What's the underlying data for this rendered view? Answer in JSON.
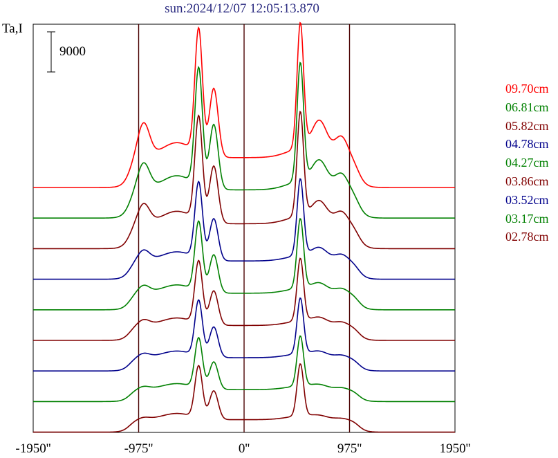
{
  "header": {
    "title": "sun:2024/12/07 12:05:13.870"
  },
  "chart_data": {
    "type": "line",
    "title": "sun:2024/12/07 12:05:13.870",
    "ylabel": "Ta,I",
    "scale_bar_label": "9000",
    "xlim": [
      -1950,
      1950
    ],
    "x_ticks": [
      -1950,
      -975,
      0,
      975,
      1950
    ],
    "x_tick_labels": [
      "-1950''",
      "-975''",
      "0''",
      "975''",
      "1950''"
    ],
    "vertical_lines": [
      -975,
      0,
      975
    ],
    "y_units": "offset stacked (scale bar = 9000)",
    "series": [
      {
        "name": "09.70cm",
        "color": "#ff0000",
        "baseline": 0,
        "amplitude": 180,
        "bump": 0.55
      },
      {
        "name": "06.81cm",
        "color": "#008000",
        "baseline": 1,
        "amplitude": 170,
        "bump": 0.45
      },
      {
        "name": "05.82cm",
        "color": "#800000",
        "baseline": 2,
        "amplitude": 150,
        "bump": 0.38
      },
      {
        "name": "04.78cm",
        "color": "#00008b",
        "baseline": 3,
        "amplitude": 110,
        "bump": 0.28
      },
      {
        "name": "04.27cm",
        "color": "#008000",
        "baseline": 4,
        "amplitude": 100,
        "bump": 0.22
      },
      {
        "name": "03.86cm",
        "color": "#800000",
        "baseline": 5,
        "amplitude": 90,
        "bump": 0.18
      },
      {
        "name": "03.52cm",
        "color": "#00008b",
        "baseline": 6,
        "amplitude": 80,
        "bump": 0.15
      },
      {
        "name": "03.17cm",
        "color": "#008000",
        "baseline": 7,
        "amplitude": 72,
        "bump": 0.12
      },
      {
        "name": "02.78cm",
        "color": "#800000",
        "baseline": 8,
        "amplitude": 75,
        "bump": 0.08
      }
    ]
  }
}
